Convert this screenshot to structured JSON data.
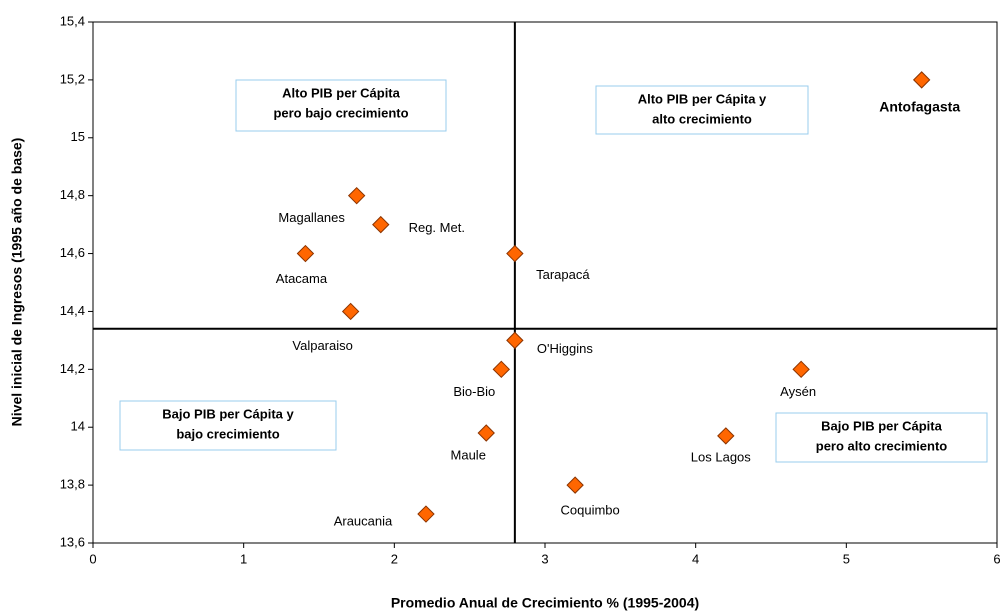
{
  "chart_data": {
    "type": "scatter",
    "xlabel": "Promedio Anual de Crecimiento % (1995-2004)",
    "ylabel": "Nivel inicial de Ingresos (1995 año de base)",
    "xlim": [
      0,
      6
    ],
    "ylim": [
      13.6,
      15.4
    ],
    "xticks": [
      0,
      1,
      2,
      3,
      4,
      5,
      6
    ],
    "yticks": [
      {
        "value": 13.6,
        "label": "13,6"
      },
      {
        "value": 13.8,
        "label": "13,8"
      },
      14,
      {
        "value": 14.2,
        "label": "14,2"
      },
      {
        "value": 14.4,
        "label": "14,4"
      },
      {
        "value": 14.6,
        "label": "14,6"
      },
      {
        "value": 14.8,
        "label": "14,8"
      },
      15,
      {
        "value": 15.2,
        "label": "15,2"
      },
      {
        "value": 15.4,
        "label": "15,4"
      }
    ],
    "color": "#ff6600",
    "reference_lines": {
      "x": 2.8,
      "y": 14.34
    },
    "labels": [
      "Antofagasta",
      "Magallanes",
      "Reg. Met.",
      "Atacama",
      "Tarapacá",
      "Valparaiso",
      "O'Higgins",
      "Bio-Bio",
      "Aysén",
      "Maule",
      "Los Lagos",
      "Coquimbo",
      "Araucania"
    ],
    "x": [
      5.5,
      1.75,
      1.91,
      1.41,
      2.8,
      1.71,
      2.8,
      2.71,
      4.7,
      2.61,
      4.2,
      3.2,
      2.21
    ],
    "values": [
      15.2,
      14.8,
      14.7,
      14.6,
      14.6,
      14.4,
      14.3,
      14.2,
      14.2,
      13.98,
      13.97,
      13.8,
      13.7
    ],
    "annotations": [
      {
        "lines": [
          "Alto PIB per Cápita",
          "pero bajo crecimiento"
        ]
      },
      {
        "lines": [
          "Alto PIB per Cápita y",
          "alto crecimiento"
        ]
      },
      {
        "lines": [
          "Bajo PIB per Cápita y",
          "bajo crecimiento"
        ]
      },
      {
        "lines": [
          "Bajo PIB per Cápita",
          "pero alto crecimiento"
        ]
      }
    ]
  }
}
